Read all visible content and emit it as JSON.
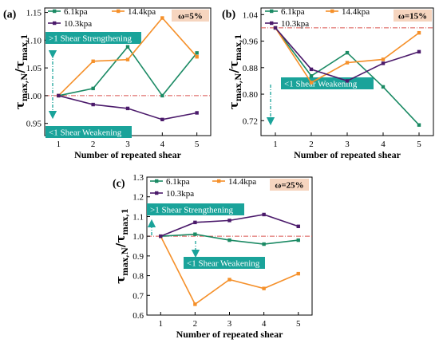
{
  "chart_data": [
    {
      "panel": "(a)",
      "type": "line",
      "omega": "ω=5%",
      "xlabel": "Number of repeated shear",
      "ylabel_main": "τ",
      "ylabel_sub_top": "max,N",
      "ylabel_mid": "/τ",
      "ylabel_sub_bottom": "max,1",
      "x": [
        1,
        2,
        3,
        4,
        5
      ],
      "xlim": [
        0.6,
        5.4
      ],
      "ylim": [
        0.928,
        1.158
      ],
      "yticks": [
        0.95,
        1.0,
        1.05,
        1.1,
        1.15
      ],
      "ytick_labels": [
        "0.95",
        "1.00",
        "1.05",
        "1.10",
        "1.15"
      ],
      "reference_line": 1.0,
      "series": [
        {
          "name": "6.1kpa",
          "color": "#1b8a64",
          "values": [
            1.0,
            1.013,
            1.088,
            1.0,
            1.077
          ]
        },
        {
          "name": "14.4kpa",
          "color": "#f5902a",
          "values": [
            1.0,
            1.062,
            1.065,
            1.14,
            1.07
          ]
        },
        {
          "name": "10.3kpa",
          "color": "#4b1a6b",
          "values": [
            1.0,
            0.984,
            0.977,
            0.957,
            0.969
          ]
        }
      ],
      "annotations": {
        "strengthen": ">1 Shear Strengthening",
        "weaken": "<1 Shear Weakening"
      }
    },
    {
      "panel": "(b)",
      "type": "line",
      "omega": "ω=15%",
      "xlabel": "Number of repeated shear",
      "ylabel_main": "τ",
      "ylabel_sub_top": "max,N",
      "ylabel_mid": "/τ",
      "ylabel_sub_bottom": "max,1",
      "x": [
        1,
        2,
        3,
        4,
        5
      ],
      "xlim": [
        0.6,
        5.4
      ],
      "ylim": [
        0.675,
        1.06
      ],
      "yticks": [
        0.72,
        0.8,
        0.88,
        0.96,
        1.04
      ],
      "ytick_labels": [
        "0.72",
        "0.80",
        "0.88",
        "0.96",
        "1.04"
      ],
      "reference_line": 1.0,
      "series": [
        {
          "name": "6.1kpa",
          "color": "#1b8a64",
          "values": [
            1.0,
            0.855,
            0.925,
            0.822,
            0.707
          ]
        },
        {
          "name": "14.4kpa",
          "color": "#f5902a",
          "values": [
            1.0,
            0.835,
            0.895,
            0.905,
            0.985
          ]
        },
        {
          "name": "10.3kpa",
          "color": "#4b1a6b",
          "values": [
            1.0,
            0.875,
            0.84,
            0.893,
            0.928
          ]
        }
      ],
      "annotations": {
        "weaken": "<1 Shear Weakening"
      }
    },
    {
      "panel": "(c)",
      "type": "line",
      "omega": "ω=25%",
      "xlabel": "Number of repeated shear",
      "ylabel_main": "τ",
      "ylabel_sub_top": "max,N",
      "ylabel_mid": "/τ",
      "ylabel_sub_bottom": "max,1",
      "x": [
        1,
        2,
        3,
        4,
        5
      ],
      "xlim": [
        0.6,
        5.4
      ],
      "ylim": [
        0.6,
        1.3
      ],
      "yticks": [
        0.6,
        0.7,
        0.8,
        0.9,
        1.0,
        1.1,
        1.2,
        1.3
      ],
      "ytick_labels": [
        "0.6",
        "0.7",
        "0.8",
        "0.9",
        "1.0",
        "1.1",
        "1.2",
        "1.3"
      ],
      "reference_line": 1.0,
      "series": [
        {
          "name": "6.1kpa",
          "color": "#1b8a64",
          "values": [
            1.0,
            1.01,
            0.98,
            0.96,
            0.98
          ]
        },
        {
          "name": "14.4kpa",
          "color": "#f5902a",
          "values": [
            1.0,
            0.655,
            0.78,
            0.735,
            0.81
          ]
        },
        {
          "name": "10.3kpa",
          "color": "#4b1a6b",
          "values": [
            1.0,
            1.07,
            1.08,
            1.11,
            1.05
          ]
        }
      ],
      "annotations": {
        "strengthen": ">1 Shear Strengthening",
        "weaken": "<1 Shear Weakening"
      }
    }
  ],
  "colors": {
    "reference_line": "#d9534f",
    "annotation_box": "#1aa39a",
    "annotation_arrow": "#1aa39a",
    "omega_box": "#f6d5bf"
  }
}
